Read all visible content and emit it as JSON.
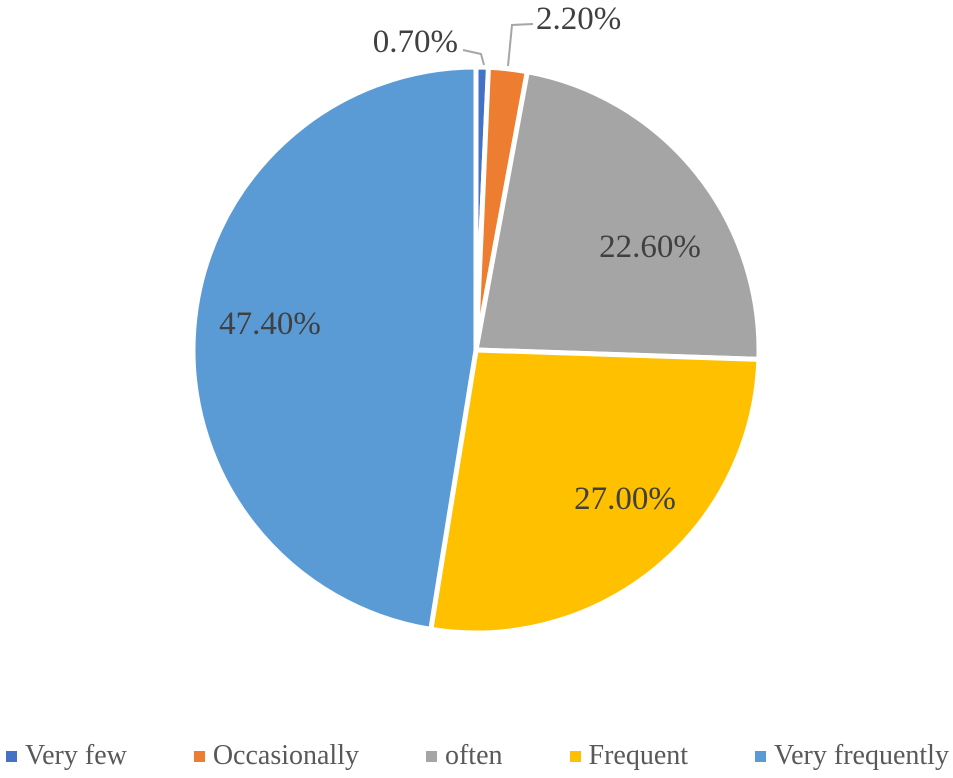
{
  "chart_data": {
    "type": "pie",
    "title": "",
    "categories": [
      "Very few",
      "Occasionally",
      "often",
      "Frequent",
      "Very frequently"
    ],
    "values": [
      0.7,
      2.2,
      22.6,
      27.0,
      47.4
    ],
    "labels": [
      "0.70%",
      "2.20%",
      "22.60%",
      "27.00%",
      "47.40%"
    ],
    "colors": [
      "#4472C4",
      "#ED7D31",
      "#A5A5A5",
      "#FFC000",
      "#5B9BD5"
    ],
    "start_angle_deg": 0,
    "direction": "clockwise",
    "legend_position": "bottom",
    "slice_border_color": "#FFFFFF",
    "data_label_color": "#404040",
    "legend_text_color": "#595959",
    "leader_line_color": "#A6A6A6",
    "background_color": "#FFFFFF"
  }
}
